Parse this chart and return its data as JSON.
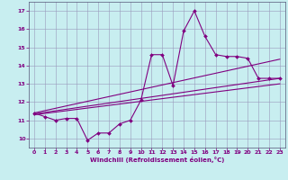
{
  "title": "",
  "xlabel": "Windchill (Refroidissement éolien,°C)",
  "ylabel": "",
  "background_color": "#c8eef0",
  "line_color": "#800080",
  "x_values": [
    0,
    1,
    2,
    3,
    4,
    5,
    6,
    7,
    8,
    9,
    10,
    11,
    12,
    13,
    14,
    15,
    16,
    17,
    18,
    19,
    20,
    21,
    22,
    23
  ],
  "y_main": [
    11.4,
    11.2,
    11.0,
    11.1,
    11.1,
    9.9,
    10.3,
    10.3,
    10.8,
    11.0,
    12.1,
    14.6,
    14.6,
    12.9,
    15.9,
    17.0,
    15.6,
    14.6,
    14.5,
    14.5,
    14.4,
    13.3,
    13.3,
    13.3
  ],
  "ylim": [
    9.5,
    17.5
  ],
  "xlim": [
    -0.5,
    23.5
  ],
  "yticks": [
    10,
    11,
    12,
    13,
    14,
    15,
    16,
    17
  ],
  "xticks": [
    0,
    1,
    2,
    3,
    4,
    5,
    6,
    7,
    8,
    9,
    10,
    11,
    12,
    13,
    14,
    15,
    16,
    17,
    18,
    19,
    20,
    21,
    22,
    23
  ],
  "reg_lines": [
    [
      [
        0,
        23
      ],
      [
        11.35,
        13.3
      ]
    ],
    [
      [
        0,
        23
      ],
      [
        11.4,
        14.35
      ]
    ],
    [
      [
        0,
        23
      ],
      [
        11.3,
        13.0
      ]
    ]
  ]
}
